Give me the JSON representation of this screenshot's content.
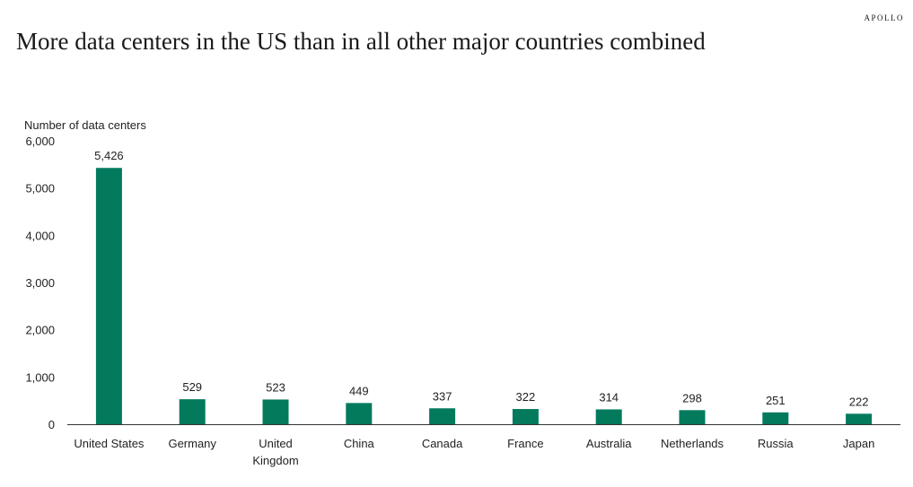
{
  "header": {
    "brand": "APOLLO",
    "title": "More data centers in the US than in all other major countries combined"
  },
  "colors": {
    "bar": "#047a5d",
    "axis": "#333333",
    "text": "#222222"
  },
  "chart_data": {
    "type": "bar",
    "title": "More data centers in the US than in all other major countries combined",
    "xlabel": "",
    "ylabel": "Number of data centers",
    "ylim": [
      0,
      6000
    ],
    "yticks": [
      0,
      1000,
      2000,
      3000,
      4000,
      5000,
      6000
    ],
    "ytick_labels": [
      "0",
      "1,000",
      "2,000",
      "3,000",
      "4,000",
      "5,000",
      "6,000"
    ],
    "categories": [
      "United States",
      "Germany",
      "United Kingdom",
      "China",
      "Canada",
      "France",
      "Australia",
      "Netherlands",
      "Russia",
      "Japan"
    ],
    "category_lines": [
      [
        "United States"
      ],
      [
        "Germany"
      ],
      [
        "United",
        "Kingdom"
      ],
      [
        "China"
      ],
      [
        "Canada"
      ],
      [
        "France"
      ],
      [
        "Australia"
      ],
      [
        "Netherlands"
      ],
      [
        "Russia"
      ],
      [
        "Japan"
      ]
    ],
    "values": [
      5426,
      529,
      523,
      449,
      337,
      322,
      314,
      298,
      251,
      222
    ],
    "data_labels": [
      "5,426",
      "529",
      "523",
      "449",
      "337",
      "322",
      "314",
      "298",
      "251",
      "222"
    ],
    "grid": false,
    "legend": "none"
  }
}
